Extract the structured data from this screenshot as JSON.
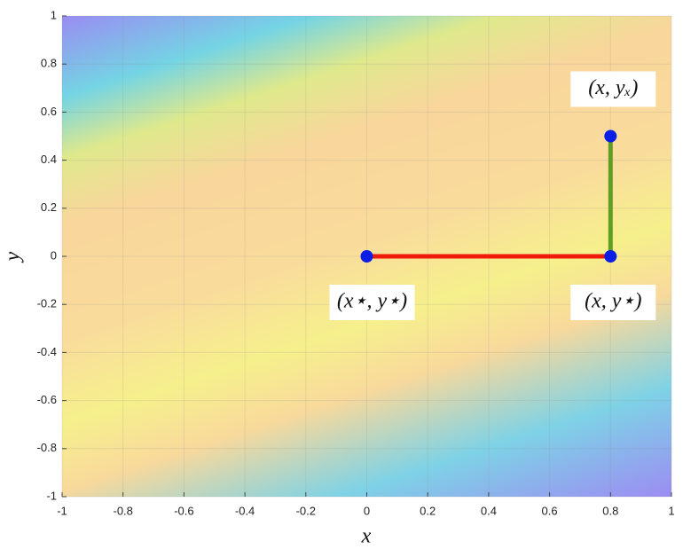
{
  "chart_data": {
    "type": "line",
    "xlabel": "x",
    "ylabel": "y",
    "xlim": [
      -1,
      1
    ],
    "ylim": [
      -1,
      1
    ],
    "xticks": [
      -1,
      -0.8,
      -0.6,
      -0.4,
      -0.2,
      0,
      0.2,
      0.4,
      0.6,
      0.8,
      1
    ],
    "yticks": [
      -1,
      -0.8,
      -0.6,
      -0.4,
      -0.2,
      0,
      0.2,
      0.4,
      0.6,
      0.8,
      1
    ],
    "grid": true,
    "series": [
      {
        "x": [
          0,
          0.8
        ],
        "values": [
          0,
          0
        ],
        "color": "#f01a0a"
      },
      {
        "x": [
          0.8,
          0.8
        ],
        "values": [
          0,
          0.5
        ],
        "color": "#5f9e22"
      }
    ],
    "points": {
      "x": [
        0,
        0.8,
        0.8
      ],
      "values": [
        0,
        0,
        0.5
      ],
      "color": "#0a1ee6",
      "labels": [
        "(x⋆, y⋆)",
        "(x, y⋆)",
        "(x, yₓ)"
      ]
    }
  }
}
